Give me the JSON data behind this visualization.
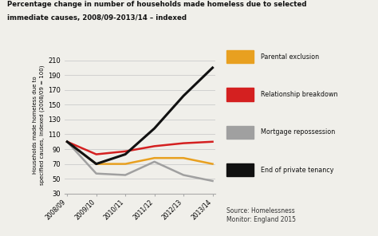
{
  "title_line1": "Percentage change in number of households made homeless due to selected",
  "title_line2": "immediate causes, 2008/09-2013/14 – indexed",
  "ylabel": "Households made homeless due to\nspecified causes, indexed (2008/09 = 100)",
  "source": "Source: Homelessness\nMonitor: England 2015",
  "x_labels": [
    "2008/09",
    "2009/10",
    "2010/11",
    "2011/12",
    "2012/13",
    "2013/14"
  ],
  "ylim": [
    30,
    215
  ],
  "yticks": [
    30,
    50,
    70,
    90,
    110,
    130,
    150,
    170,
    190,
    210
  ],
  "series": {
    "Parental exclusion": {
      "values": [
        100,
        70,
        70,
        78,
        78,
        70
      ],
      "color": "#E8A020",
      "linewidth": 1.8
    },
    "Relationship breakdown": {
      "values": [
        100,
        83,
        87,
        94,
        98,
        100
      ],
      "color": "#D42020",
      "linewidth": 1.8
    },
    "Mortgage repossession": {
      "values": [
        100,
        57,
        55,
        73,
        55,
        47
      ],
      "color": "#A0A0A0",
      "linewidth": 1.8
    },
    "End of private tenancy": {
      "values": [
        100,
        70,
        83,
        118,
        162,
        200
      ],
      "color": "#111111",
      "linewidth": 2.2
    }
  },
  "bg_color": "#F0EFEA",
  "legend_order": [
    "Parental exclusion",
    "Relationship breakdown",
    "Mortgage repossession",
    "End of private tenancy"
  ]
}
